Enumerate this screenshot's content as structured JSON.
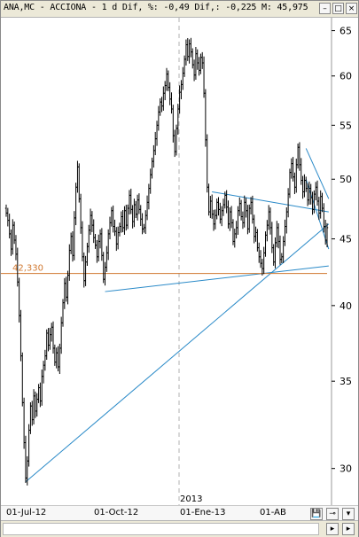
{
  "window": {
    "title": "ANA,MC - ACCIONA -  1 d Dif, %: -0,49 Dif,: -0,225 M: 45,975",
    "minimize_glyph": "–",
    "maximize_glyph": "□",
    "close_glyph": "×"
  },
  "chart_data": {
    "type": "candlestick",
    "instrument": "ANA,MC - ACCIONA",
    "ylim": [
      28.7,
      66.5
    ],
    "y_scale": "log",
    "y_ticks": [
      30,
      35,
      40,
      45,
      50,
      55,
      60,
      65
    ],
    "x_tick_labels": [
      "01-Jul-12",
      "01-Oct-12",
      "01-Ene-13",
      "01-AB"
    ],
    "year_label": "2013",
    "horizontal_level": {
      "value": 42.33,
      "label": "42,330",
      "color": "#d07830"
    },
    "grid": false,
    "trend_color": "#2a8ac8",
    "candles_close": [
      47.1,
      46.5,
      45.4,
      44.2,
      46.1,
      44.9,
      43.8,
      41.7,
      39.3,
      36.6,
      33.7,
      31.4,
      29.5,
      30.4,
      32.1,
      33.5,
      32.7,
      34.1,
      33.2,
      33.9,
      34.6,
      33.8,
      35.3,
      36.0,
      36.6,
      38.1,
      37.3,
      38.0,
      38.5,
      37.1,
      36.2,
      36.8,
      35.9,
      37.1,
      38.8,
      40.2,
      41.6,
      40.6,
      42.2,
      44.1,
      45.2,
      43.7,
      46.7,
      49.3,
      51.1,
      48.3,
      45.9,
      43.6,
      41.8,
      43.2,
      44.4,
      45.7,
      46.9,
      46.1,
      45.1,
      44.5,
      43.6,
      44.8,
      45.4,
      43.7,
      41.9,
      42.8,
      43.9,
      45.4,
      46.3,
      47.3,
      46.0,
      45.6,
      44.6,
      45.5,
      46.0,
      46.8,
      45.9,
      47.3,
      46.1,
      47.5,
      48.6,
      47.4,
      46.4,
      47.8,
      47.0,
      48.2,
      47.4,
      46.6,
      45.8,
      45.9,
      46.9,
      48.0,
      49.2,
      50.4,
      51.6,
      52.6,
      53.7,
      55.0,
      56.3,
      57.3,
      56.9,
      58.2,
      59.0,
      60.2,
      58.8,
      57.6,
      56.6,
      54.0,
      52.5,
      54.7,
      56.6,
      58.3,
      59.1,
      60.3,
      61.8,
      63.4,
      62.1,
      63.5,
      62.6,
      61.2,
      60.1,
      62.4,
      61.4,
      60.6,
      62.0,
      61.4,
      58.2,
      53.6,
      49.3,
      47.2,
      48.1,
      47.0,
      46.2,
      46.9,
      48.0,
      47.4,
      46.6,
      47.3,
      47.8,
      48.6,
      47.6,
      46.2,
      47.2,
      46.3,
      44.8,
      45.4,
      45.9,
      47.3,
      47.9,
      46.8,
      46.3,
      48.0,
      47.3,
      45.8,
      47.5,
      48.0,
      46.6,
      45.2,
      45.5,
      44.3,
      43.6,
      43.1,
      42.7,
      43.9,
      45.3,
      46.1,
      47.2,
      45.9,
      44.3,
      43.2,
      44.7,
      45.9,
      44.8,
      43.4,
      43.6,
      44.8,
      46.0,
      47.2,
      48.7,
      50.6,
      51.4,
      50.2,
      49.3,
      51.3,
      52.9,
      51.3,
      49.9,
      48.9,
      49.9,
      49.2,
      48.2,
      49.2,
      48.4,
      47.4,
      48.7,
      49.3,
      48.1,
      47.1,
      48.5,
      47.5,
      46.0,
      44.9,
      45.9
    ]
  },
  "status": {
    "save_glyph": "💾",
    "tool_glyph": "⊸",
    "dropdown_glyph": "▾"
  }
}
